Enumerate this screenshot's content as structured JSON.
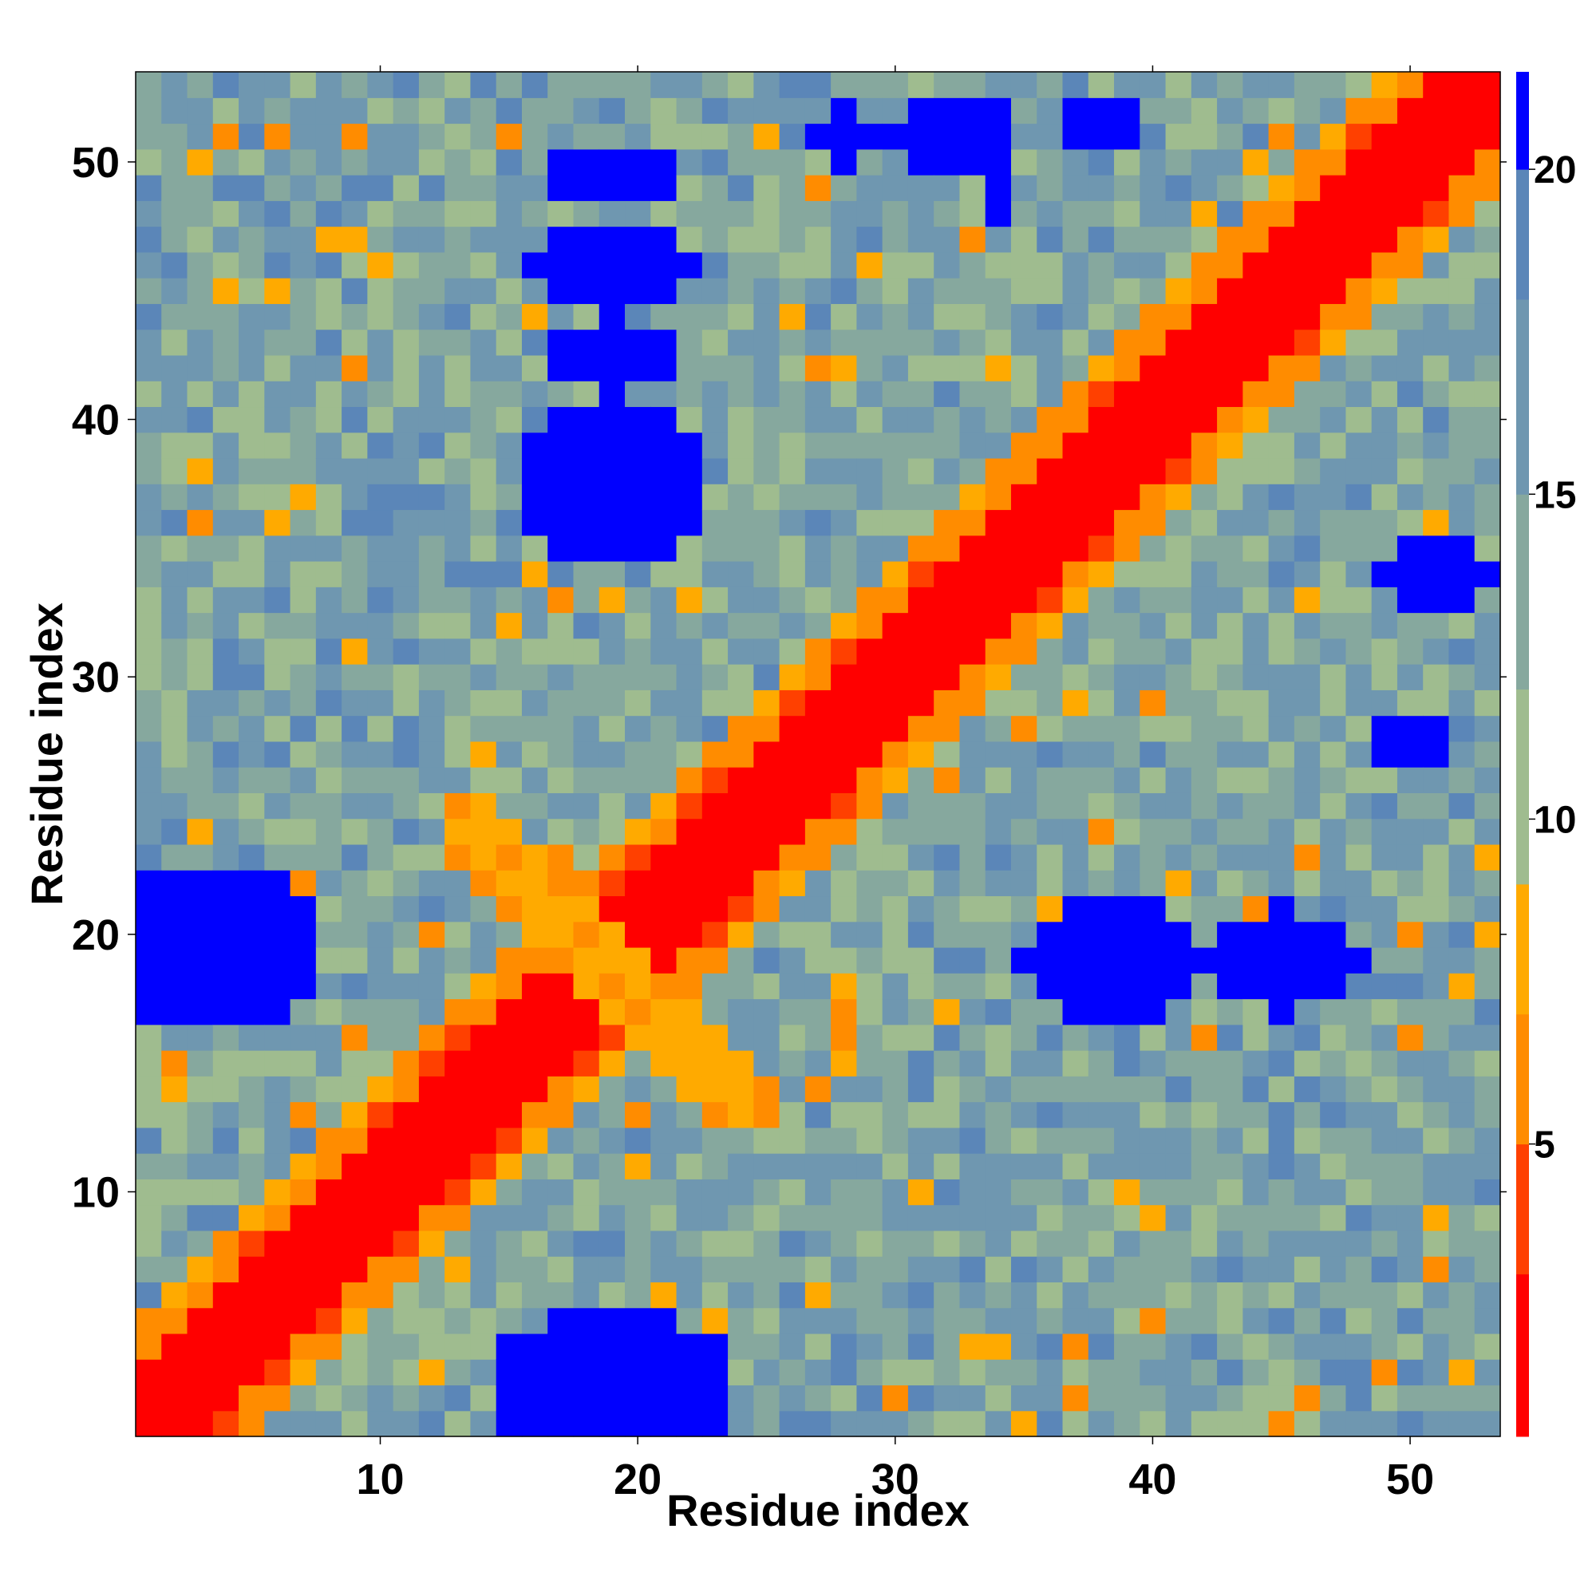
{
  "chart_data": {
    "type": "heatmap",
    "xlabel": "Residue index",
    "ylabel": "Residue index",
    "n_residues": 53,
    "xlim": [
      0.5,
      53.5
    ],
    "ylim": [
      0.5,
      53.5
    ],
    "x_ticks": [
      10,
      20,
      30,
      40,
      50
    ],
    "y_ticks": [
      10,
      20,
      30,
      40,
      50
    ],
    "colorbar": {
      "ticks": [
        5,
        10,
        15,
        20
      ],
      "range": [
        0.5,
        21.5
      ],
      "colors": [
        {
          "upto": 3,
          "color": "#ff0000"
        },
        {
          "upto": 5,
          "color": "#ff4000"
        },
        {
          "upto": 7,
          "color": "#ff8c00"
        },
        {
          "upto": 9,
          "color": "#ffaa00"
        },
        {
          "upto": 12,
          "color": "#9fbc8f"
        },
        {
          "upto": 15,
          "color": "#86a89e"
        },
        {
          "upto": 18,
          "color": "#6f97b0"
        },
        {
          "upto": 20,
          "color": "#5b86b8"
        },
        {
          "upto": 999,
          "color": "#0000ff"
        }
      ]
    },
    "blobs": [
      {
        "cx": 19,
        "cy": 2.5,
        "rx": 5,
        "ry": 3
      },
      {
        "cx": 19,
        "cy": 37.5,
        "rx": 4,
        "ry": 3
      },
      {
        "cx": 19,
        "cy": 42.5,
        "rx": 3,
        "ry": 1.5
      },
      {
        "cx": 19,
        "cy": 46,
        "rx": 3,
        "ry": 1.5
      },
      {
        "cx": 19,
        "cy": 49.5,
        "rx": 3,
        "ry": 1
      },
      {
        "cx": 3.5,
        "cy": 19.5,
        "rx": 4,
        "ry": 3.5
      },
      {
        "cx": 38.5,
        "cy": 19,
        "rx": 3.5,
        "ry": 2.5
      },
      {
        "cx": 45,
        "cy": 19,
        "rx": 3,
        "ry": 2
      },
      {
        "cx": 50,
        "cy": 27.5,
        "rx": 1.5,
        "ry": 1
      },
      {
        "cx": 51,
        "cy": 34,
        "rx": 2,
        "ry": 1.5
      },
      {
        "cx": 28,
        "cy": 51,
        "rx": 1,
        "ry": 1.5
      },
      {
        "cx": 32,
        "cy": 51,
        "rx": 2,
        "ry": 1.2
      },
      {
        "cx": 38,
        "cy": 51.5,
        "rx": 2,
        "ry": 1.2
      },
      {
        "cx": 34,
        "cy": 50,
        "rx": 0.6,
        "ry": 2
      }
    ]
  }
}
